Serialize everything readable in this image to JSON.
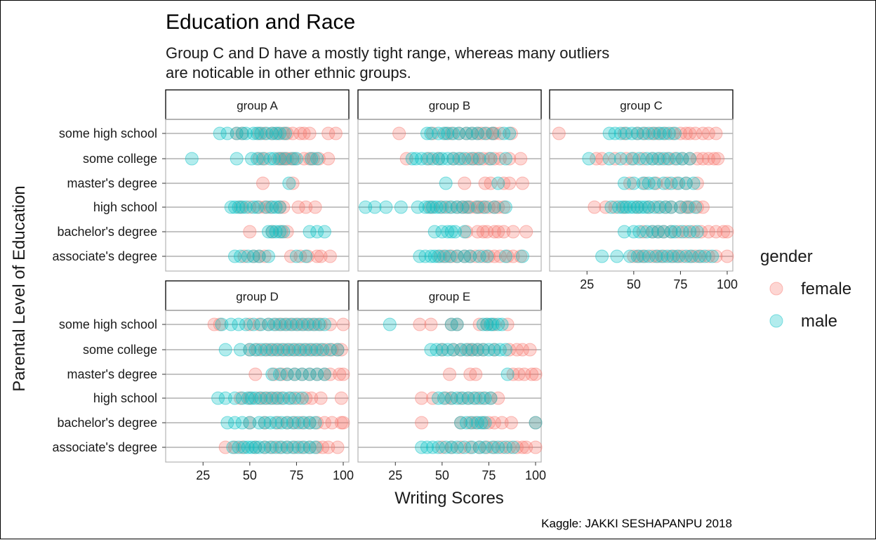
{
  "chart_data": {
    "type": "scatter",
    "title": "Education and Race",
    "subtitle_lines": [
      "Group C and D have a mostly tight range, whereas many outliers",
      "are noticable in other ethnic groups."
    ],
    "caption": "Kaggle: JAKKI SESHAPANPU 2018",
    "xlabel": "Writing Scores",
    "ylabel": "Parental Level of Education",
    "xlim": [
      5,
      103
    ],
    "x_ticks": [
      25,
      50,
      75,
      100
    ],
    "grid": "horizontal",
    "categories": [
      "some high school",
      "some college",
      "master's degree",
      "high school",
      "bachelor's degree",
      "associate's degree"
    ],
    "legend": {
      "title": "gender",
      "position": "right",
      "entries": [
        {
          "label": "female",
          "color": "#F8766D"
        },
        {
          "label": "male",
          "color": "#00BFC4"
        }
      ]
    },
    "panels": [
      {
        "name": "group A",
        "series": [
          {
            "name": "female",
            "points": {
              "some high school": [
                43,
                46,
                55,
                58,
                62,
                65,
                68,
                70,
                73,
                77,
                79,
                82,
                92,
                96
              ],
              "some college": [
                55,
                58,
                65,
                67,
                68,
                70,
                72,
                74,
                79,
                82,
                84,
                87,
                92
              ],
              "master's degree": [
                57,
                73
              ],
              "high school": [
                45,
                50,
                55,
                58,
                61,
                66,
                68,
                76,
                80,
                85
              ],
              "bachelor's degree": [
                50,
                62,
                67,
                70
              ],
              "associate's degree": [
                47,
                52,
                55,
                58,
                72,
                77,
                81,
                86,
                88,
                93
              ]
            }
          },
          {
            "name": "male",
            "points": {
              "some high school": [
                34,
                38,
                43,
                46,
                48,
                52,
                54,
                56,
                59,
                62,
                64,
                66,
                69
              ],
              "some college": [
                19,
                43,
                51,
                54,
                57,
                61,
                63,
                66,
                69,
                73,
                75,
                83,
                86
              ],
              "master's degree": [
                71
              ],
              "high school": [
                40,
                42,
                44,
                46,
                48,
                52,
                54,
                59,
                62,
                64,
                66
              ],
              "bachelor's degree": [
                60,
                62,
                64,
                66,
                68,
                82,
                86,
                90
              ],
              "associate's degree": [
                42,
                45,
                49,
                52,
                55,
                60,
                75,
                80
              ]
            }
          }
        ]
      },
      {
        "name": "group B",
        "series": [
          {
            "name": "female",
            "points": {
              "some high school": [
                27,
                45,
                52,
                55,
                59,
                63,
                66,
                69,
                71,
                74,
                77,
                78,
                81,
                87
              ],
              "some college": [
                31,
                43,
                48,
                56,
                60,
                64,
                67,
                69,
                72,
                75,
                78,
                81,
                86,
                92
              ],
              "master's degree": [
                62,
                73,
                76,
                83,
                86,
                93
              ],
              "high school": [
                44,
                50,
                54,
                58,
                61,
                63,
                65,
                68,
                70,
                72,
                75,
                78,
                80,
                83
              ],
              "bachelor's degree": [
                63,
                69,
                72,
                74,
                78,
                80,
                83,
                88,
                95
              ],
              "associate's degree": [
                49,
                52,
                55,
                58,
                62,
                65,
                68,
                72,
                75,
                78,
                81,
                85,
                88,
                92
              ]
            }
          },
          {
            "name": "male",
            "points": {
              "some high school": [
                42,
                44,
                48,
                51,
                53,
                56,
                59,
                63,
                66,
                69,
                73,
                77,
                83,
                86
              ],
              "some college": [
                34,
                36,
                39,
                42,
                45,
                48,
                50,
                53,
                56,
                59,
                62,
                66,
                70,
                76,
                84
              ],
              "master's degree": [
                52,
                80
              ],
              "high school": [
                9,
                14,
                20,
                28,
                37,
                41,
                43,
                45,
                47,
                49,
                52,
                55,
                58,
                61,
                64,
                69,
                73,
                78,
                84
              ],
              "bachelor's degree": [
                46,
                50,
                53,
                55,
                57,
                62
              ],
              "associate's degree": [
                38,
                41,
                44,
                46,
                48,
                51,
                54,
                58,
                62,
                65,
                70,
                74,
                84,
                93
              ]
            }
          }
        ]
      },
      {
        "name": "group C",
        "series": [
          {
            "name": "female",
            "points": {
              "some high school": [
                10,
                45,
                52,
                56,
                60,
                63,
                67,
                71,
                75,
                78,
                80,
                83,
                87,
                90,
                94
              ],
              "some college": [
                30,
                33,
                40,
                46,
                50,
                55,
                60,
                64,
                68,
                72,
                76,
                80,
                84,
                87,
                90,
                93,
                95
              ],
              "master's degree": [
                48,
                56,
                62,
                68,
                73,
                78,
                84
              ],
              "high school": [
                29,
                35,
                40,
                45,
                52,
                58,
                63,
                67,
                70,
                75,
                78,
                80,
                84,
                87
              ],
              "bachelor's degree": [
                55,
                60,
                63,
                66,
                70,
                74,
                78,
                82,
                86,
                90,
                94,
                98,
                100
              ],
              "associate's degree": [
                50,
                53,
                56,
                60,
                63,
                66,
                70,
                73,
                76,
                80,
                83,
                86,
                90,
                94,
                100
              ]
            }
          },
          {
            "name": "male",
            "points": {
              "some high school": [
                37,
                40,
                43,
                46,
                49,
                52,
                55,
                58,
                61,
                64,
                66,
                69,
                72
              ],
              "some college": [
                26,
                37,
                43,
                49,
                53,
                57,
                60,
                63,
                66,
                69,
                73,
                76,
                80
              ],
              "master's degree": [
                45,
                50,
                55,
                58,
                61,
                66,
                70,
                74,
                78,
                82
              ],
              "high school": [
                38,
                42,
                44,
                46,
                48,
                50,
                52,
                54,
                56,
                58,
                61,
                64,
                67,
                70,
                75,
                79,
                83
              ],
              "bachelor's degree": [
                45,
                50,
                53,
                57,
                60,
                63,
                66,
                70,
                72,
                76,
                80,
                84
              ],
              "associate's degree": [
                33,
                41,
                48,
                52,
                55,
                58,
                62,
                65,
                68,
                71,
                74,
                78,
                81,
                85,
                88,
                92
              ]
            }
          }
        ]
      },
      {
        "name": "group D",
        "series": [
          {
            "name": "female",
            "points": {
              "some high school": [
                31,
                34,
                50,
                55,
                60,
                64,
                67,
                70,
                73,
                76,
                79,
                82,
                85,
                88,
                93,
                100
              ],
              "some college": [
                50,
                54,
                58,
                61,
                64,
                67,
                70,
                73,
                76,
                79,
                82,
                85,
                88,
                91,
                94,
                97,
                99
              ],
              "master's degree": [
                53,
                63,
                67,
                70,
                74,
                78,
                82,
                86,
                90,
                93,
                98,
                100
              ],
              "high school": [
                45,
                50,
                55,
                58,
                61,
                64,
                67,
                72,
                76,
                80,
                83,
                88,
                99
              ],
              "bachelor's degree": [
                50,
                58,
                65,
                70,
                74,
                78,
                82,
                86,
                90,
                94,
                99,
                100
              ],
              "associate's degree": [
                37,
                42,
                46,
                53,
                58,
                62,
                66,
                70,
                74,
                78,
                82,
                86,
                89,
                92,
                97
              ]
            }
          },
          {
            "name": "male",
            "points": {
              "some high school": [
                35,
                40,
                44,
                48,
                52,
                56,
                60,
                63,
                66,
                69,
                72,
                75,
                78,
                81,
                84,
                87,
                90
              ],
              "some college": [
                37,
                45,
                50,
                53,
                56,
                59,
                62,
                65,
                68,
                71,
                74,
                77,
                80,
                83,
                86,
                89,
                93,
                97
              ],
              "master's degree": [
                62,
                66,
                70,
                74,
                78,
                82,
                86,
                90
              ],
              "high school": [
                33,
                37,
                42,
                46,
                49,
                51,
                53,
                56,
                59,
                62,
                65,
                68,
                71,
                74,
                78
              ],
              "bachelor's degree": [
                38,
                42,
                46,
                50,
                55,
                58,
                61,
                64,
                67,
                70,
                73,
                76,
                79,
                82,
                85
              ],
              "associate's degree": [
                41,
                44,
                47,
                49,
                51,
                53,
                55,
                58,
                61,
                64,
                67,
                70,
                73,
                76,
                79,
                82,
                85
              ]
            }
          }
        ]
      },
      {
        "name": "group E",
        "series": [
          {
            "name": "female",
            "points": {
              "some high school": [
                38,
                44,
                55,
                58,
                70,
                74,
                78,
                85
              ],
              "some college": [
                50,
                56,
                60,
                64,
                66,
                69,
                72,
                78,
                86,
                90,
                93,
                97
              ],
              "master's degree": [
                54,
                65,
                68,
                88,
                91,
                94,
                98,
                100
              ],
              "high school": [
                39,
                45,
                52,
                55,
                60,
                64,
                68,
                72,
                76,
                80
              ],
              "bachelor's degree": [
                39,
                60,
                65,
                68,
                72,
                75,
                78,
                82,
                87,
                100
              ],
              "associate's degree": [
                50,
                55,
                60,
                65,
                70,
                74,
                78,
                82,
                86,
                90,
                93,
                95,
                100
              ]
            }
          },
          {
            "name": "male",
            "points": {
              "some high school": [
                22,
                55,
                58,
                72,
                74,
                76,
                77,
                80,
                82
              ],
              "some college": [
                44,
                47,
                50,
                53,
                56,
                60,
                63,
                66,
                69,
                72,
                75,
                78,
                81,
                84
              ],
              "master's degree": [
                85
              ],
              "high school": [
                48,
                51,
                55,
                58,
                61,
                64,
                67,
                70,
                73,
                76
              ],
              "bachelor's degree": [
                60,
                63,
                66,
                69,
                71,
                73,
                100
              ],
              "associate's degree": [
                39,
                42,
                45,
                48,
                52,
                55,
                58,
                62,
                66,
                70,
                73,
                77,
                80,
                84,
                88
              ]
            }
          }
        ]
      }
    ]
  }
}
